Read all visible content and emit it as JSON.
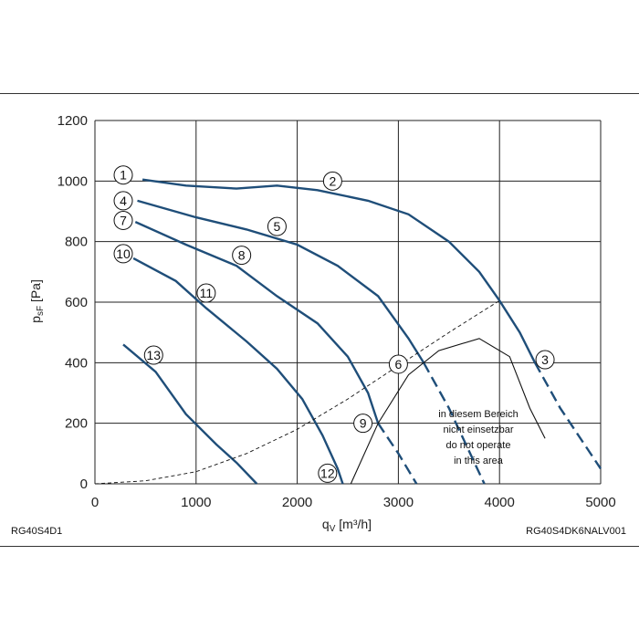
{
  "footer": {
    "left_code": "RG40S4D1",
    "right_code": "RG40S4DK6NALV001"
  },
  "chart_data": {
    "type": "line",
    "xlabel": "q",
    "xlabel_sub": "V",
    "xlabel_unit": " [m³/h]",
    "ylabel": "p",
    "ylabel_sub": "sF",
    "ylabel_unit": " [Pa]",
    "xlim": [
      0,
      5000
    ],
    "ylim": [
      0,
      1200
    ],
    "xticks": [
      0,
      1000,
      2000,
      3000,
      4000,
      5000
    ],
    "yticks": [
      0,
      200,
      400,
      600,
      800,
      1000,
      1200
    ],
    "grid": true,
    "colors": {
      "curve": "#1f4e79",
      "boundary": "#111111",
      "grid": "#222222"
    },
    "annotation": {
      "lines": [
        "in diesem Bereich",
        "nicht einsetzbar",
        "do not operate",
        "in this area"
      ]
    },
    "series": [
      {
        "id": "1-2-3",
        "style": "solid",
        "points": [
          [
            470,
            1005
          ],
          [
            900,
            985
          ],
          [
            1400,
            975
          ],
          [
            1800,
            985
          ],
          [
            2200,
            970
          ],
          [
            2700,
            935
          ],
          [
            3100,
            890
          ],
          [
            3500,
            800
          ],
          [
            3800,
            700
          ],
          [
            4000,
            605
          ],
          [
            4200,
            500
          ],
          [
            4350,
            400
          ]
        ]
      },
      {
        "id": "3-dashed",
        "style": "dashed",
        "points": [
          [
            4350,
            400
          ],
          [
            4600,
            250
          ],
          [
            5000,
            50
          ]
        ]
      },
      {
        "id": "4-5-6",
        "style": "solid",
        "points": [
          [
            420,
            935
          ],
          [
            1000,
            880
          ],
          [
            1500,
            840
          ],
          [
            2000,
            790
          ],
          [
            2400,
            720
          ],
          [
            2800,
            620
          ],
          [
            3100,
            480
          ],
          [
            3250,
            400
          ]
        ]
      },
      {
        "id": "6-dashed",
        "style": "dashed",
        "points": [
          [
            3250,
            400
          ],
          [
            3500,
            250
          ],
          [
            3850,
            0
          ]
        ]
      },
      {
        "id": "7-8-9",
        "style": "solid",
        "points": [
          [
            400,
            865
          ],
          [
            900,
            790
          ],
          [
            1400,
            720
          ],
          [
            1800,
            620
          ],
          [
            2200,
            530
          ],
          [
            2500,
            420
          ],
          [
            2700,
            300
          ],
          [
            2800,
            200
          ]
        ]
      },
      {
        "id": "9-dashed",
        "style": "dashed",
        "points": [
          [
            2800,
            200
          ],
          [
            3000,
            100
          ],
          [
            3180,
            0
          ]
        ]
      },
      {
        "id": "10-11-12",
        "style": "solid",
        "points": [
          [
            380,
            745
          ],
          [
            800,
            670
          ],
          [
            1100,
            580
          ],
          [
            1500,
            470
          ],
          [
            1800,
            380
          ],
          [
            2050,
            280
          ],
          [
            2250,
            160
          ],
          [
            2400,
            50
          ],
          [
            2450,
            0
          ]
        ]
      },
      {
        "id": "13",
        "style": "solid",
        "points": [
          [
            280,
            460
          ],
          [
            600,
            370
          ],
          [
            900,
            230
          ],
          [
            1200,
            130
          ],
          [
            1400,
            70
          ],
          [
            1600,
            0
          ]
        ]
      },
      {
        "id": "boundary-dashed",
        "style": "thin-dashed",
        "points": [
          [
            0,
            0
          ],
          [
            500,
            10
          ],
          [
            1000,
            40
          ],
          [
            1500,
            100
          ],
          [
            2000,
            180
          ],
          [
            2500,
            280
          ],
          [
            3000,
            390
          ],
          [
            3500,
            500
          ],
          [
            4000,
            605
          ]
        ]
      },
      {
        "id": "boundary-solid",
        "style": "thin-solid",
        "points": [
          [
            2530,
            0
          ],
          [
            2800,
            200
          ],
          [
            3100,
            360
          ],
          [
            3400,
            440
          ],
          [
            3800,
            480
          ],
          [
            4100,
            420
          ],
          [
            4300,
            250
          ],
          [
            4450,
            150
          ]
        ]
      }
    ],
    "markers": [
      {
        "label": "1",
        "x": 280,
        "y": 1020
      },
      {
        "label": "2",
        "x": 2350,
        "y": 1000
      },
      {
        "label": "3",
        "x": 4450,
        "y": 410
      },
      {
        "label": "4",
        "x": 280,
        "y": 935
      },
      {
        "label": "5",
        "x": 1800,
        "y": 850
      },
      {
        "label": "6",
        "x": 3000,
        "y": 395
      },
      {
        "label": "7",
        "x": 280,
        "y": 870
      },
      {
        "label": "8",
        "x": 1450,
        "y": 755
      },
      {
        "label": "9",
        "x": 2650,
        "y": 200
      },
      {
        "label": "10",
        "x": 280,
        "y": 760
      },
      {
        "label": "11",
        "x": 1100,
        "y": 630
      },
      {
        "label": "12",
        "x": 2300,
        "y": 35
      },
      {
        "label": "13",
        "x": 580,
        "y": 425
      }
    ]
  }
}
